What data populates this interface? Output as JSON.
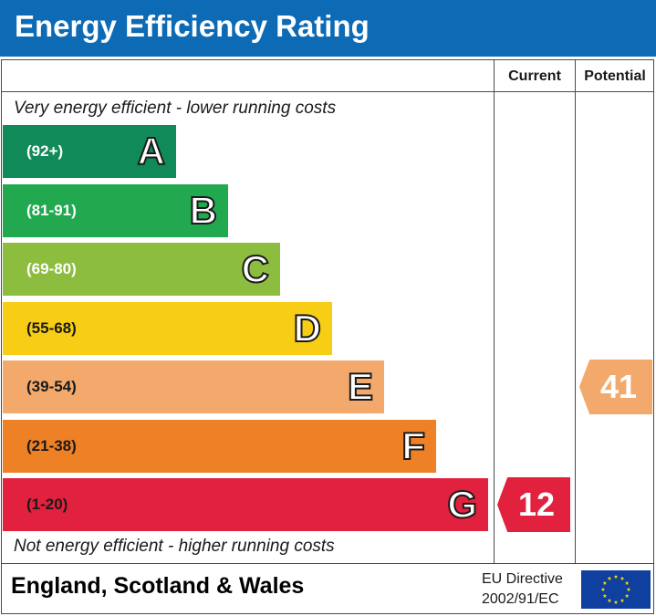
{
  "title": "Energy Efficiency Rating",
  "columns": {
    "current": "Current",
    "potential": "Potential"
  },
  "captions": {
    "top": "Very energy efficient - lower running costs",
    "bottom": "Not energy efficient - higher running costs"
  },
  "chart_data": {
    "type": "bar",
    "title": "Energy Efficiency Rating",
    "categories": [
      "A",
      "B",
      "C",
      "D",
      "E",
      "F",
      "G"
    ],
    "ranges": [
      "(92+)",
      "(81-91)",
      "(69-80)",
      "(55-68)",
      "(39-54)",
      "(21-38)",
      "(1-20)"
    ],
    "colors": [
      "#0f8a58",
      "#22a94f",
      "#8cbd3f",
      "#f7cd15",
      "#f2a96b",
      "#ee8025",
      "#e1213d"
    ],
    "series": [
      {
        "name": "Current",
        "value": 12,
        "band": "G",
        "color": "#e1213d"
      },
      {
        "name": "Potential",
        "value": 41,
        "band": "E",
        "color": "#f2a96b"
      }
    ]
  },
  "footer": {
    "region": "England, Scotland & Wales",
    "directive_line1": "EU Directive",
    "directive_line2": "2002/91/EC",
    "flag_icon": "eu-flag-icon"
  }
}
